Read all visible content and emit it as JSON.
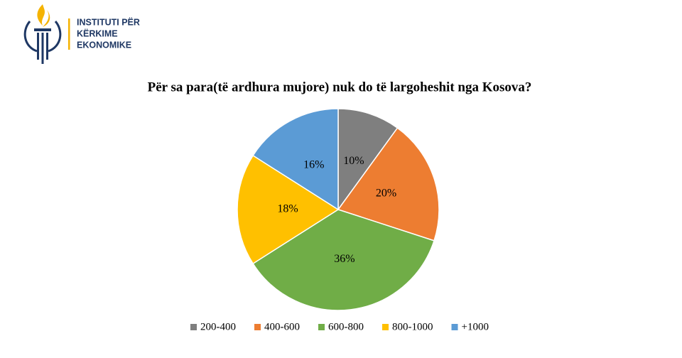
{
  "logo": {
    "lines": [
      "INSTITUTI PËR",
      "KËRKIME",
      "EKONOMIKE"
    ]
  },
  "chart_data": {
    "type": "pie",
    "title": "Për sa para(të ardhura mujore) nuk do të largoheshit nga Kosova?",
    "categories": [
      "200-400",
      "400-600",
      "600-800",
      "800-1000",
      "+1000"
    ],
    "values": [
      10,
      20,
      36,
      18,
      16
    ],
    "value_labels": [
      "10%",
      "20%",
      "36%",
      "18%",
      "16%"
    ],
    "colors": [
      "#7f7f7f",
      "#ed7d31",
      "#70ad47",
      "#ffc000",
      "#5b9bd5"
    ],
    "legend": "bottom"
  }
}
